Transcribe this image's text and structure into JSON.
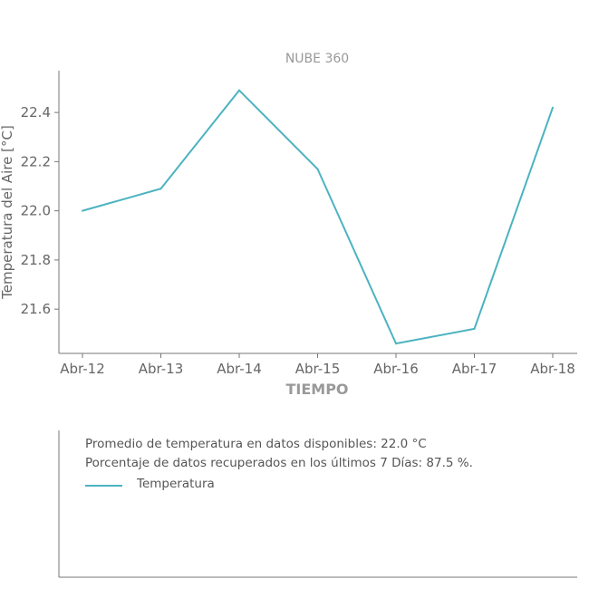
{
  "chart_data": {
    "type": "line",
    "title": "NUBE 360",
    "xlabel": "TIEMPO",
    "ylabel": "Temperatura del Aire [°C]",
    "categories": [
      "Abr-12",
      "Abr-13",
      "Abr-14",
      "Abr-15",
      "Abr-16",
      "Abr-17",
      "Abr-18"
    ],
    "series": [
      {
        "name": "Temperatura",
        "values": [
          22.0,
          22.09,
          22.49,
          22.17,
          21.46,
          21.52,
          22.42
        ],
        "color": "#4bb3c0"
      }
    ],
    "yticks": [
      21.6,
      21.8,
      22.0,
      22.2,
      22.4
    ],
    "ytick_labels": [
      "21.6",
      "21.8",
      "22.0",
      "22.2",
      "22.4"
    ],
    "ylim": [
      21.42,
      22.57
    ],
    "grid": false
  },
  "notes": {
    "average": "Promedio de temperatura en datos disponibles: 22.0 °C",
    "recovered": "Porcentaje de datos recuperados en los últimos 7 Días: 87.5 %."
  },
  "legend": {
    "label": "Temperatura"
  },
  "colors": {
    "line": "#4bb3c0",
    "axis": "#777777"
  }
}
